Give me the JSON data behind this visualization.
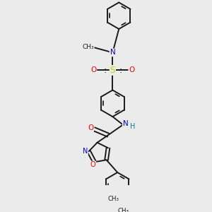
{
  "background_color": "#ebebeb",
  "bond_color": "#1a1a1a",
  "atom_colors": {
    "N": "#0000ff",
    "O": "#ff0000",
    "S": "#cccc00",
    "NH": "#008080",
    "C": "#1a1a1a"
  },
  "lw": 1.4,
  "xlim": [
    -1.8,
    1.8
  ],
  "ylim": [
    -3.5,
    1.5
  ]
}
